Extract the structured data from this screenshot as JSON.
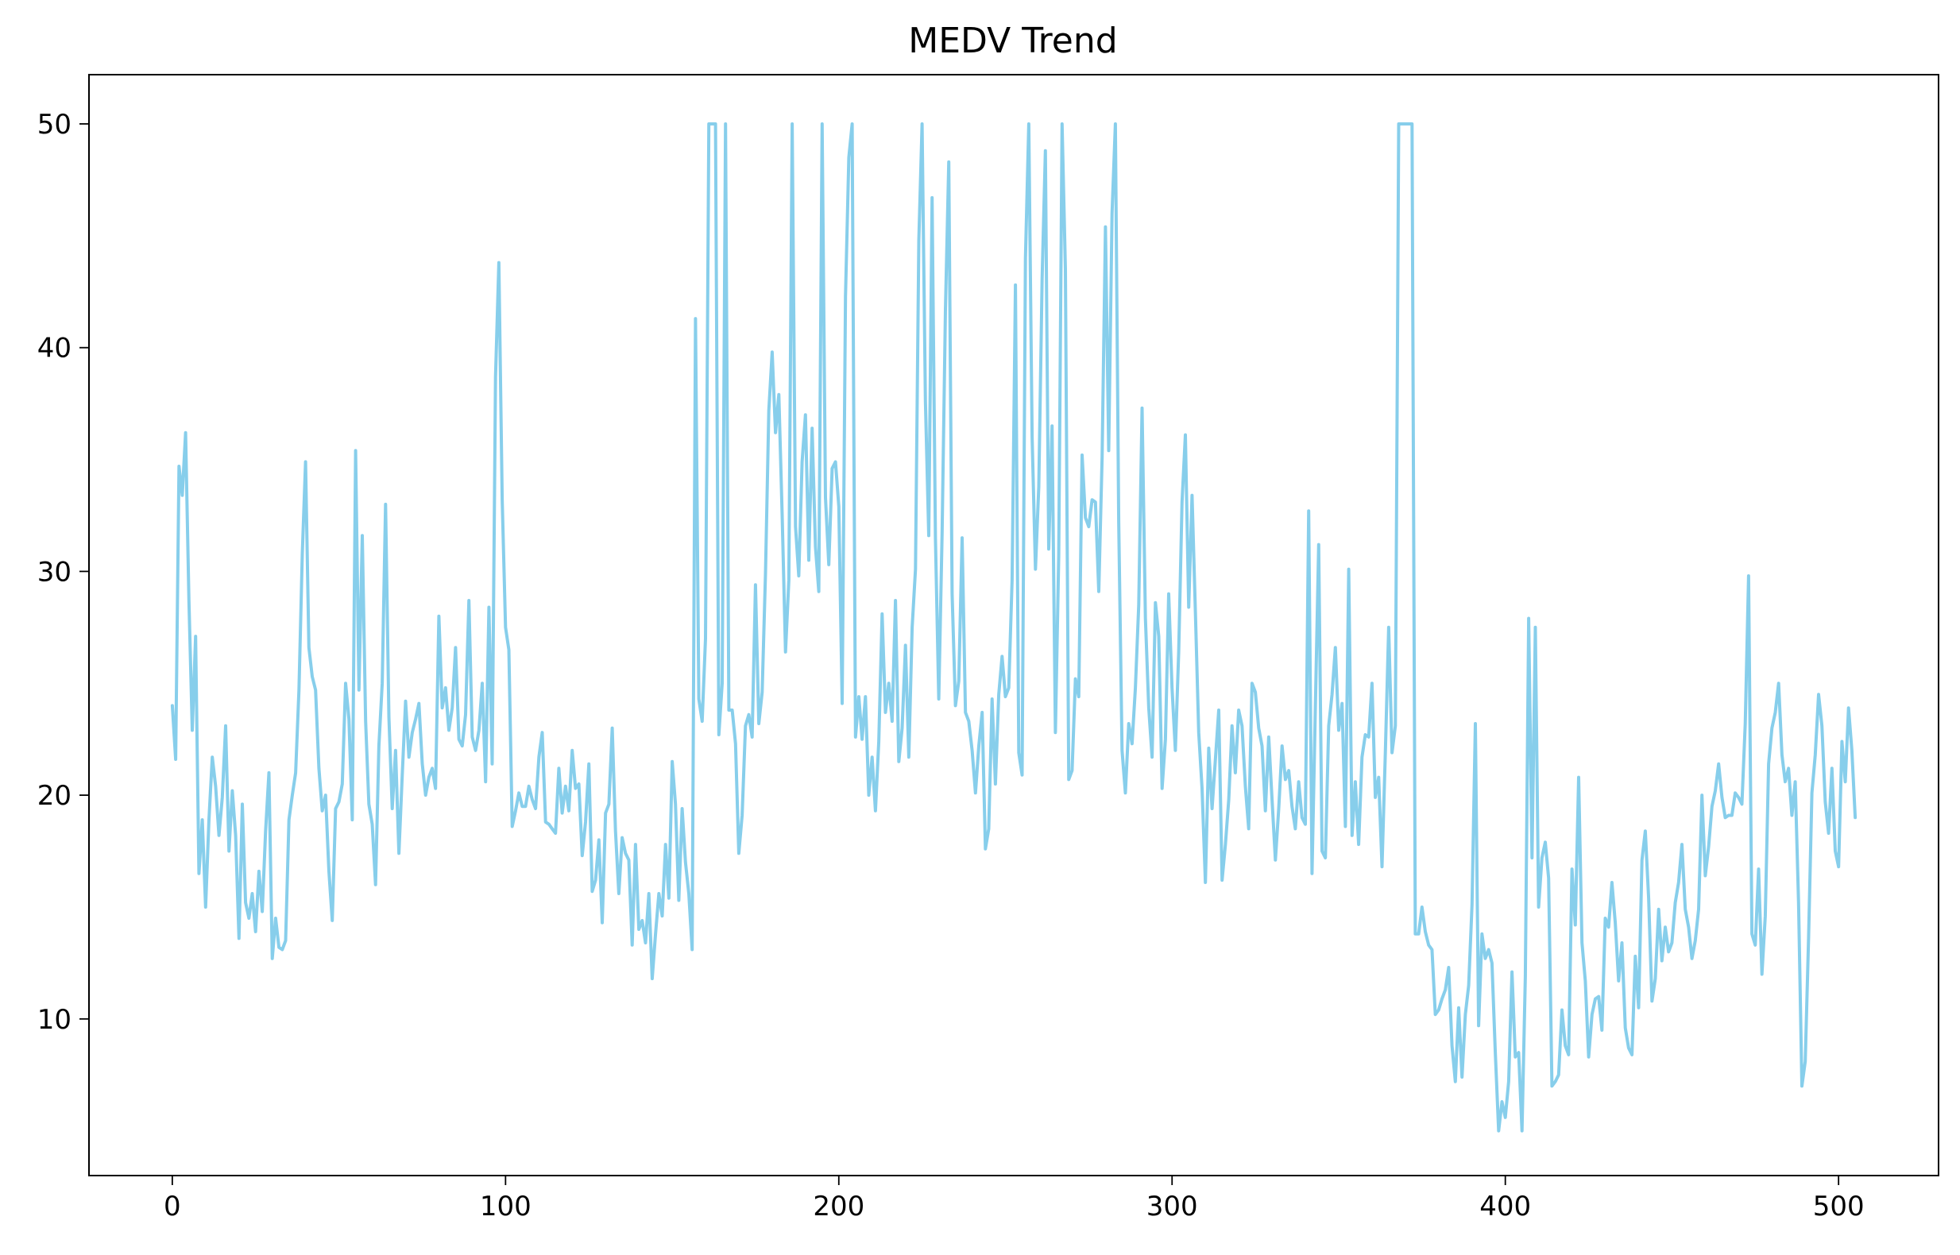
{
  "chart_data": {
    "type": "line",
    "title": "MEDV Trend",
    "xlabel": "",
    "ylabel": "",
    "xlim": [
      -25,
      530
    ],
    "ylim": [
      3,
      52.2
    ],
    "xticks": [
      0,
      100,
      200,
      300,
      400,
      500
    ],
    "yticks": [
      10,
      20,
      30,
      40,
      50
    ],
    "grid": false,
    "line_color": "#87CEEB",
    "series": [
      {
        "x": [
          0,
          1,
          2,
          3,
          4,
          5,
          6,
          7,
          8,
          9,
          10,
          11,
          12,
          13,
          14,
          15,
          16,
          17,
          18,
          19,
          20,
          21,
          22,
          23,
          24,
          25,
          26,
          27,
          28,
          29,
          30,
          31,
          32,
          33,
          34,
          35,
          36,
          37,
          38,
          39,
          40,
          41,
          42,
          43,
          44,
          45,
          46,
          47,
          48,
          49,
          50,
          51,
          52,
          53,
          54,
          55,
          56,
          57,
          58,
          59,
          60,
          61,
          62,
          63,
          64,
          65,
          66,
          67,
          68,
          69,
          70,
          71,
          72,
          73,
          74,
          75,
          76,
          77,
          78,
          79,
          80,
          81,
          82,
          83,
          84,
          85,
          86,
          87,
          88,
          89,
          90,
          91,
          92,
          93,
          94,
          95,
          96,
          97,
          98,
          99,
          100,
          101,
          102,
          103,
          104,
          105,
          106,
          107,
          108,
          109,
          110,
          111,
          112,
          113,
          114,
          115,
          116,
          117,
          118,
          119,
          120,
          121,
          122,
          123,
          124,
          125,
          126,
          127,
          128,
          129,
          130,
          131,
          132,
          133,
          134,
          135,
          136,
          137,
          138,
          139,
          140,
          141,
          142,
          143,
          144,
          145,
          146,
          147,
          148,
          149,
          150,
          151,
          152,
          153,
          154,
          155,
          156,
          157,
          158,
          159,
          160,
          161,
          162,
          163,
          164,
          165,
          166,
          167,
          168,
          169,
          170,
          171,
          172,
          173,
          174,
          175,
          176,
          177,
          178,
          179,
          180,
          181,
          182,
          183,
          184,
          185,
          186,
          187,
          188,
          189,
          190,
          191,
          192,
          193,
          194,
          195,
          196,
          197,
          198,
          199,
          200,
          201,
          202,
          203,
          204,
          205,
          206,
          207,
          208,
          209,
          210,
          211,
          212,
          213,
          214,
          215,
          216,
          217,
          218,
          219,
          220,
          221,
          222,
          223,
          224,
          225,
          226,
          227,
          228,
          229,
          230,
          231,
          232,
          233,
          234,
          235,
          236,
          237,
          238,
          239,
          240,
          241,
          242,
          243,
          244,
          245,
          246,
          247,
          248,
          249,
          250,
          251,
          252,
          253,
          254,
          255,
          256,
          257,
          258,
          259,
          260,
          261,
          262,
          263,
          264,
          265,
          266,
          267,
          268,
          269,
          270,
          271,
          272,
          273,
          274,
          275,
          276,
          277,
          278,
          279,
          280,
          281,
          282,
          283,
          284,
          285,
          286,
          287,
          288,
          289,
          290,
          291,
          292,
          293,
          294,
          295,
          296,
          297,
          298,
          299,
          300,
          301,
          302,
          303,
          304,
          305,
          306,
          307,
          308,
          309,
          310,
          311,
          312,
          313,
          314,
          315,
          316,
          317,
          318,
          319,
          320,
          321,
          322,
          323,
          324,
          325,
          326,
          327,
          328,
          329,
          330,
          331,
          332,
          333,
          334,
          335,
          336,
          337,
          338,
          339,
          340,
          341,
          342,
          343,
          344,
          345,
          346,
          347,
          348,
          349,
          350,
          351,
          352,
          353,
          354,
          355,
          356,
          357,
          358,
          359,
          360,
          361,
          362,
          363,
          364,
          365,
          366,
          367,
          368,
          369,
          370,
          371,
          372,
          373,
          374,
          375,
          376,
          377,
          378,
          379,
          380,
          381,
          382,
          383,
          384,
          385,
          386,
          387,
          388,
          389,
          390,
          391,
          392,
          393,
          394,
          395,
          396,
          397,
          398,
          399,
          400,
          401,
          402,
          403,
          404,
          405,
          406,
          407,
          408,
          409,
          410,
          411,
          412,
          413,
          414,
          415,
          416,
          417,
          418,
          419,
          420,
          421,
          422,
          423,
          424,
          425,
          426,
          427,
          428,
          429,
          430,
          431,
          432,
          433,
          434,
          435,
          436,
          437,
          438,
          439,
          440,
          441,
          442,
          443,
          444,
          445,
          446,
          447,
          448,
          449,
          450,
          451,
          452,
          453,
          454,
          455,
          456,
          457,
          458,
          459,
          460,
          461,
          462,
          463,
          464,
          465,
          466,
          467,
          468,
          469,
          470,
          471,
          472,
          473,
          474,
          475,
          476,
          477,
          478,
          479,
          480,
          481,
          482,
          483,
          484,
          485,
          486,
          487,
          488,
          489,
          490,
          491,
          492,
          493,
          494,
          495,
          496,
          497,
          498,
          499,
          500,
          501,
          502,
          503,
          504,
          505
        ],
        "values": [
          24.0,
          21.6,
          34.7,
          33.4,
          36.2,
          28.7,
          22.9,
          27.1,
          16.5,
          18.9,
          15.0,
          18.9,
          21.7,
          20.4,
          18.2,
          19.9,
          23.1,
          17.5,
          20.2,
          18.2,
          13.6,
          19.6,
          15.2,
          14.5,
          15.6,
          13.9,
          16.6,
          14.8,
          18.4,
          21.0,
          12.7,
          14.5,
          13.2,
          13.1,
          13.5,
          18.9,
          20.0,
          21.0,
          24.7,
          30.8,
          34.9,
          26.6,
          25.3,
          24.7,
          21.2,
          19.3,
          20.0,
          16.6,
          14.4,
          19.4,
          19.7,
          20.5,
          25.0,
          23.4,
          18.9,
          35.4,
          24.7,
          31.6,
          23.3,
          19.6,
          18.7,
          16.0,
          22.2,
          25.0,
          33.0,
          23.5,
          19.4,
          22.0,
          17.4,
          20.9,
          24.2,
          21.7,
          22.8,
          23.4,
          24.1,
          21.4,
          20.0,
          20.8,
          21.2,
          20.3,
          28.0,
          23.9,
          24.8,
          22.9,
          23.9,
          26.6,
          22.5,
          22.2,
          23.6,
          28.7,
          22.6,
          22.0,
          22.9,
          25.0,
          20.6,
          28.4,
          21.4,
          38.7,
          43.8,
          33.2,
          27.5,
          26.5,
          18.6,
          19.3,
          20.1,
          19.5,
          19.5,
          20.4,
          19.8,
          19.4,
          21.7,
          22.8,
          18.8,
          18.7,
          18.5,
          18.3,
          21.2,
          19.2,
          20.4,
          19.3,
          22.0,
          20.3,
          20.5,
          17.3,
          18.8,
          21.4,
          15.7,
          16.2,
          18.0,
          14.3,
          19.2,
          19.6,
          23.0,
          18.4,
          15.6,
          18.1,
          17.4,
          17.1,
          13.3,
          17.8,
          14.0,
          14.4,
          13.4,
          15.6,
          11.8,
          13.8,
          15.6,
          14.6,
          17.8,
          15.4,
          21.5,
          19.6,
          15.3,
          19.4,
          17.0,
          15.6,
          13.1,
          41.3,
          24.3,
          23.3,
          27.0,
          50.0,
          50.0,
          50.0,
          22.7,
          25.0,
          50.0,
          23.8,
          23.8,
          22.3,
          17.4,
          19.1,
          23.1,
          23.6,
          22.6,
          29.4,
          23.2,
          24.6,
          29.9,
          37.2,
          39.8,
          36.2,
          37.9,
          32.5,
          26.4,
          29.6,
          50.0,
          32.0,
          29.8,
          34.9,
          37.0,
          30.5,
          36.4,
          31.1,
          29.1,
          50.0,
          33.3,
          30.3,
          34.6,
          34.9,
          32.9,
          24.1,
          42.3,
          48.5,
          50.0,
          22.6,
          24.4,
          22.5,
          24.4,
          20.0,
          21.7,
          19.3,
          22.4,
          28.1,
          23.7,
          25.0,
          23.3,
          28.7,
          21.5,
          23.0,
          26.7,
          21.7,
          27.5,
          30.1,
          44.8,
          50.0,
          37.6,
          31.6,
          46.7,
          31.5,
          24.3,
          31.7,
          41.7,
          48.3,
          29.0,
          24.0,
          25.1,
          31.5,
          23.7,
          23.3,
          22.0,
          20.1,
          22.2,
          23.7,
          17.6,
          18.5,
          24.3,
          20.5,
          24.5,
          26.2,
          24.4,
          24.8,
          29.6,
          42.8,
          21.9,
          20.9,
          44.0,
          50.0,
          36.0,
          30.1,
          33.8,
          43.1,
          48.8,
          31.0,
          36.5,
          22.8,
          30.7,
          50.0,
          43.5,
          20.7,
          21.1,
          25.2,
          24.4,
          35.2,
          32.4,
          32.0,
          33.2,
          33.1,
          29.1,
          35.1,
          45.4,
          35.4,
          46.0,
          50.0,
          32.2,
          22.0,
          20.1,
          23.2,
          22.3,
          24.8,
          28.5,
          37.3,
          27.9,
          23.9,
          21.7,
          28.6,
          27.1,
          20.3,
          22.5,
          29.0,
          24.8,
          22.0,
          26.4,
          33.1,
          36.1,
          28.4,
          33.4,
          28.2,
          22.8,
          20.3,
          16.1,
          22.1,
          19.4,
          21.6,
          23.8,
          16.2,
          17.8,
          19.8,
          23.1,
          21.0,
          23.8,
          23.1,
          20.4,
          18.5,
          25.0,
          24.6,
          23.0,
          22.2,
          19.3,
          22.6,
          19.8,
          17.1,
          19.4,
          22.2,
          20.7,
          21.1,
          19.5,
          18.5,
          20.6,
          19.0,
          18.7,
          32.7,
          16.5,
          23.9,
          31.2,
          17.5,
          17.2,
          23.1,
          24.5,
          26.6,
          22.9,
          24.1,
          18.6,
          30.1,
          18.2,
          20.6,
          17.8,
          21.7,
          22.7,
          22.6,
          25.0,
          19.9,
          20.8,
          16.8,
          21.9,
          27.5,
          21.9,
          23.1,
          50.0,
          50.0,
          50.0,
          50.0,
          50.0,
          13.8,
          13.8,
          15.0,
          13.9,
          13.3,
          13.1,
          10.2,
          10.4,
          10.9,
          11.3,
          12.3,
          8.8,
          7.2,
          10.5,
          7.4,
          10.2,
          11.5,
          15.1,
          23.2,
          9.7,
          13.8,
          12.7,
          13.1,
          12.5,
          8.5,
          5.0,
          6.3,
          5.6,
          7.2,
          12.1,
          8.3,
          8.5,
          5.0,
          11.9,
          27.9,
          17.2,
          27.5,
          15.0,
          17.2,
          17.9,
          16.3,
          7.0,
          7.2,
          7.5,
          10.4,
          8.8,
          8.4,
          16.7,
          14.2,
          20.8,
          13.4,
          11.7,
          8.3,
          10.2,
          10.9,
          11.0,
          9.5,
          14.5,
          14.1,
          16.1,
          14.3,
          11.7,
          13.4,
          9.6,
          8.7,
          8.4,
          12.8,
          10.5,
          17.1,
          18.4,
          15.4,
          10.8,
          11.8,
          14.9,
          12.6,
          14.1,
          13.0,
          13.4,
          15.2,
          16.1,
          17.8,
          14.9,
          14.1,
          12.7,
          13.5,
          14.9,
          20.0,
          16.4,
          17.7,
          19.5,
          20.2,
          21.4,
          19.9,
          19.0,
          19.1,
          19.1,
          20.1,
          19.9,
          19.6,
          23.2,
          29.8,
          13.8,
          13.3,
          16.7,
          12.0,
          14.6,
          21.4,
          23.0,
          23.7,
          25.0,
          21.8,
          20.6,
          21.2,
          19.1,
          20.6,
          15.2,
          7.0,
          8.1,
          13.6,
          20.1,
          21.8,
          24.5,
          23.1,
          19.7,
          18.3,
          21.2,
          17.5,
          16.8,
          22.4,
          20.6,
          23.9,
          22.0,
          19.0
        ]
      }
    ]
  }
}
